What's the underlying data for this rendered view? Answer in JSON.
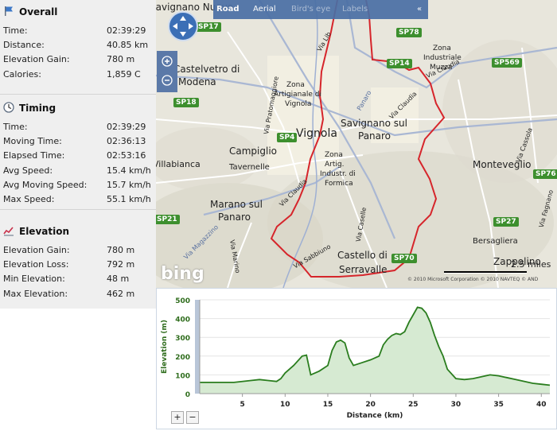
{
  "sidebar": {
    "overall": {
      "title": "Overall",
      "rows": [
        {
          "label": "Time:",
          "value": "02:39:29"
        },
        {
          "label": "Distance:",
          "value": "40.85 km"
        },
        {
          "label": "Elevation Gain:",
          "value": "780 m"
        },
        {
          "label": "Calories:",
          "value": "1,859 C"
        }
      ]
    },
    "timing": {
      "title": "Timing",
      "rows": [
        {
          "label": "Time:",
          "value": "02:39:29"
        },
        {
          "label": "Moving Time:",
          "value": "02:36:13"
        },
        {
          "label": "Elapsed Time:",
          "value": "02:53:16"
        },
        {
          "label": "Avg Speed:",
          "value": "15.4 km/h"
        },
        {
          "label": "Avg Moving Speed:",
          "value": "15.7 km/h"
        },
        {
          "label": "Max Speed:",
          "value": "55.1 km/h"
        }
      ]
    },
    "elevation": {
      "title": "Elevation",
      "rows": [
        {
          "label": "Elevation Gain:",
          "value": "780 m"
        },
        {
          "label": "Elevation Loss:",
          "value": "792 m"
        },
        {
          "label": "Min Elevation:",
          "value": "48 m"
        },
        {
          "label": "Max Elevation:",
          "value": "462 m"
        }
      ]
    }
  },
  "map": {
    "toolbar": {
      "road": "Road",
      "aerial": "Aerial",
      "birdseye": "Bird's eye",
      "labels": "Labels",
      "collapse": "«"
    },
    "places": {
      "savignano_nuovo": "Savignano Nuovo",
      "castelvetro": "Castelvetro di",
      "modena": "Modena",
      "vignola": "Vignola",
      "savignano_sul": "Savignano sul",
      "panaro_1": "Panaro",
      "campiglio": "Campiglio",
      "tavernelle": "Tavernelle",
      "villabianca": "Villabianca",
      "marano": "Marano sul",
      "panaro_2": "Panaro",
      "castello": "Castello di",
      "serravalle": "Serravalle",
      "monteveglio": "Monteveglio",
      "bersagliera": "Bersagliera",
      "zappolino": "Zappolino",
      "zona_ind_1": "Zona",
      "zona_ind_2": "Industriale",
      "zona_ind_3": "Muzza",
      "zona_art_1": "Zona",
      "zona_art_2": "Artigianale di",
      "zona_art_3": "Vignola",
      "zona_form_1": "Zona",
      "zona_form_2": "Artig.",
      "zona_form_3": "Industr. di",
      "zona_form_4": "Formica",
      "via_claudia_1": "Via Claudia",
      "via_claudia_2": "Via Claudia",
      "via_claudia_3": "Via Claudia",
      "via_cassola": "Via Cassola",
      "via_fagnano": "Via Fagnano",
      "via_sabbiuno": "Via Sabbiuno",
      "via_pratomaggiore": "Via Pratomaggiore",
      "via_marino": "Via Marino",
      "via_caselle": "Via Caselle",
      "via_lib": "Via Lib",
      "panaro_river": "Panaro",
      "via_magazzino": "Via Magazzino"
    },
    "roads": [
      "SP17",
      "SP78",
      "SP14",
      "SP569",
      "SP18",
      "SP4",
      "SP76",
      "SP27",
      "SP70",
      "SP21"
    ],
    "scale": "2.5 miles",
    "copyright": "© 2010 Microsoft Corporation   © 2010 NAVTEQ   © AND",
    "logo": "bing"
  },
  "chart_data": {
    "type": "area",
    "xlabel": "Distance (km)",
    "ylabel": "Elevation (m)",
    "xlim": [
      0,
      41
    ],
    "ylim": [
      0,
      500
    ],
    "xticks": [
      5,
      10,
      15,
      20,
      25,
      30,
      35,
      40
    ],
    "yticks": [
      0,
      100,
      200,
      300,
      400,
      500
    ],
    "grid": true,
    "color": "#2a7d1e",
    "fill": "#d6ead2",
    "x": [
      0,
      2,
      4,
      6,
      7,
      8,
      9,
      9.5,
      10,
      10.5,
      11,
      12,
      12.5,
      13,
      13.5,
      14,
      15,
      15.5,
      16,
      16.5,
      17,
      17.5,
      18,
      19,
      20,
      21,
      21.5,
      22,
      22.5,
      23,
      23.5,
      24,
      24.5,
      25,
      25.5,
      26,
      26.5,
      27,
      27.5,
      28,
      28.5,
      29,
      30,
      31,
      32,
      33,
      34,
      35,
      36,
      37,
      38,
      39,
      40,
      41
    ],
    "y": [
      60,
      60,
      60,
      70,
      75,
      70,
      65,
      80,
      110,
      130,
      150,
      200,
      205,
      100,
      110,
      120,
      150,
      230,
      275,
      285,
      270,
      190,
      150,
      165,
      180,
      200,
      260,
      290,
      310,
      320,
      315,
      330,
      380,
      420,
      460,
      455,
      430,
      380,
      310,
      250,
      200,
      130,
      80,
      75,
      80,
      90,
      100,
      95,
      85,
      75,
      65,
      55,
      50,
      45
    ]
  },
  "chart_ui": {
    "zoom_in": "+",
    "zoom_out": "−"
  }
}
